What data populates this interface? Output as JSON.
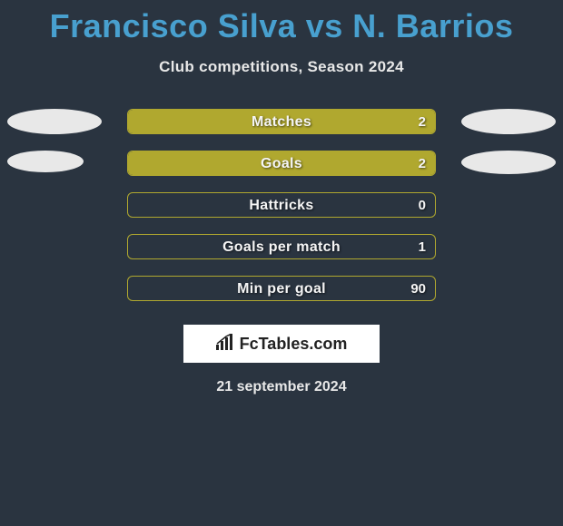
{
  "title": "Francisco Silva vs N. Barrios",
  "subtitle": "Club competitions, Season 2024",
  "date": "21 september 2024",
  "logo_text": "FcTables.com",
  "colors": {
    "background": "#2a3440",
    "title": "#48a0cf",
    "text": "#e8e8e8",
    "bar_fill": "#b0a82f",
    "bar_border": "#b0a82f",
    "ellipse": "#e8e8e8",
    "logo_bg": "#ffffff",
    "logo_text": "#222222"
  },
  "ellipse": {
    "width": 104,
    "height": 28
  },
  "rows": [
    {
      "label": "Matches",
      "value": "2",
      "fill_pct": 100,
      "left_ellipse": true,
      "right_ellipse": true,
      "left_w": 104,
      "left_h": 28,
      "right_w": 104,
      "right_h": 28
    },
    {
      "label": "Goals",
      "value": "2",
      "fill_pct": 100,
      "left_ellipse": true,
      "right_ellipse": true,
      "left_w": 84,
      "left_h": 24,
      "right_w": 104,
      "right_h": 26
    },
    {
      "label": "Hattricks",
      "value": "0",
      "fill_pct": 0,
      "left_ellipse": false,
      "right_ellipse": false
    },
    {
      "label": "Goals per match",
      "value": "1",
      "fill_pct": 0,
      "left_ellipse": false,
      "right_ellipse": false
    },
    {
      "label": "Min per goal",
      "value": "90",
      "fill_pct": 0,
      "left_ellipse": false,
      "right_ellipse": false
    }
  ]
}
